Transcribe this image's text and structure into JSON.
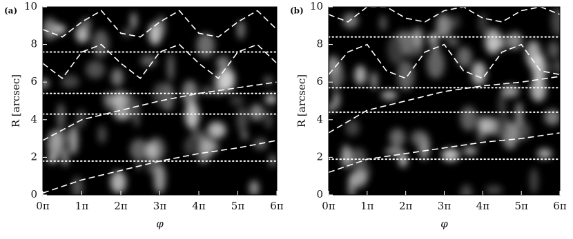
{
  "chart_data": [
    {
      "type": "line",
      "panel_label": "(a)",
      "xlabel": "φ",
      "ylabel": "R [arcsec]",
      "xlim": [
        0,
        6
      ],
      "ylim": [
        0,
        10
      ],
      "xticks": [
        {
          "value": 0,
          "label": "0π"
        },
        {
          "value": 1,
          "label": "1π"
        },
        {
          "value": 2,
          "label": "2π"
        },
        {
          "value": 3,
          "label": "3π"
        },
        {
          "value": 4,
          "label": "4π"
        },
        {
          "value": 5,
          "label": "5π"
        },
        {
          "value": 6,
          "label": "6π"
        }
      ],
      "yticks": [
        0,
        2,
        4,
        6,
        8,
        10
      ],
      "hlines": [
        7.6,
        5.4,
        4.3,
        1.8
      ],
      "series": [
        {
          "color": "#ffffff",
          "x": [
            0,
            1,
            2,
            3,
            4,
            5,
            6
          ],
          "values": [
            0.1,
            0.8,
            1.3,
            1.8,
            2.2,
            2.5,
            2.9
          ]
        },
        {
          "color": "#ffffff",
          "x": [
            0,
            1,
            2,
            3,
            4,
            5,
            6
          ],
          "values": [
            2.9,
            4.0,
            4.5,
            5.0,
            5.4,
            5.7,
            6.0
          ]
        },
        {
          "color": "#ffffff",
          "x": [
            0,
            0.5,
            1,
            1.5,
            2,
            2.5,
            3,
            3.5,
            4,
            4.5,
            5,
            5.5,
            6
          ],
          "values": [
            7.0,
            6.2,
            7.6,
            8.0,
            7.0,
            6.2,
            7.6,
            8.0,
            7.0,
            6.2,
            7.6,
            8.0,
            7.0
          ]
        },
        {
          "color": "#ffffff",
          "x": [
            0,
            0.5,
            1,
            1.5,
            2,
            2.5,
            3,
            3.5,
            4,
            4.5,
            5,
            5.5,
            6
          ],
          "values": [
            8.8,
            8.4,
            9.2,
            9.8,
            8.6,
            8.4,
            9.2,
            9.8,
            8.6,
            8.4,
            9.2,
            9.8,
            8.8
          ]
        }
      ]
    },
    {
      "type": "line",
      "panel_label": "(b)",
      "xlabel": "φ",
      "ylabel": "R [arcsec]",
      "xlim": [
        0,
        6
      ],
      "ylim": [
        0,
        10
      ],
      "xticks": [
        {
          "value": 0,
          "label": "0π"
        },
        {
          "value": 1,
          "label": "1π"
        },
        {
          "value": 2,
          "label": "2π"
        },
        {
          "value": 3,
          "label": "3π"
        },
        {
          "value": 4,
          "label": "4π"
        },
        {
          "value": 5,
          "label": "5π"
        },
        {
          "value": 6,
          "label": "6π"
        }
      ],
      "yticks": [
        0,
        2,
        4,
        6,
        8,
        10
      ],
      "hlines": [
        8.4,
        5.7,
        4.4,
        1.9
      ],
      "series": [
        {
          "color": "#ffffff",
          "x": [
            0,
            1,
            2,
            3,
            4,
            5,
            6
          ],
          "values": [
            1.2,
            1.9,
            2.2,
            2.5,
            2.8,
            3.0,
            3.3
          ]
        },
        {
          "color": "#ffffff",
          "x": [
            0,
            1,
            2,
            3,
            4,
            5,
            6
          ],
          "values": [
            3.3,
            4.5,
            5.0,
            5.5,
            5.8,
            6.0,
            6.3
          ]
        },
        {
          "color": "#ffffff",
          "x": [
            0,
            0.5,
            1,
            1.5,
            2,
            2.5,
            3,
            3.5,
            4,
            4.5,
            5,
            5.5,
            6
          ],
          "values": [
            6.4,
            7.6,
            8.0,
            6.6,
            6.2,
            7.6,
            8.0,
            6.6,
            6.2,
            7.6,
            8.0,
            6.6,
            6.4
          ]
        },
        {
          "color": "#ffffff",
          "x": [
            0,
            0.5,
            1,
            1.5,
            2,
            2.5,
            3,
            3.5,
            4,
            4.5,
            5,
            5.5,
            6
          ],
          "values": [
            9.6,
            9.2,
            10.0,
            10.0,
            9.4,
            9.2,
            9.8,
            10.0,
            9.4,
            9.2,
            9.8,
            10.0,
            9.6
          ]
        }
      ]
    }
  ]
}
